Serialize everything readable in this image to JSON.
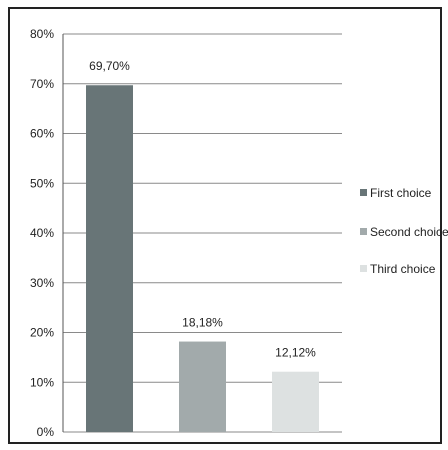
{
  "chart_data": {
    "type": "bar",
    "categories": [
      "First choice",
      "Second choice",
      "Third choice"
    ],
    "values": [
      69.7,
      18.18,
      12.12
    ],
    "data_labels": [
      "69,70%",
      "18,18%",
      "12,12%"
    ],
    "ylim": [
      0,
      80
    ],
    "yticks": [
      0,
      10,
      20,
      30,
      40,
      50,
      60,
      70,
      80
    ],
    "ytick_labels": [
      "0%",
      "10%",
      "20%",
      "30%",
      "40%",
      "50%",
      "60%",
      "70%",
      "80%"
    ],
    "colors": [
      "#687577",
      "#a2aaab",
      "#dde1e1"
    ],
    "grid": true,
    "legend": "right",
    "title": "",
    "xlabel": "",
    "ylabel": ""
  }
}
